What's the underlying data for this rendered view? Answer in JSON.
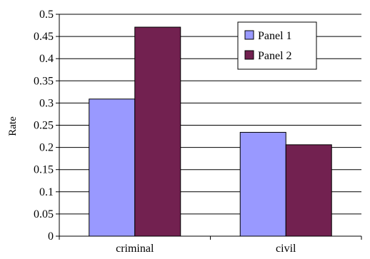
{
  "chart_data": {
    "type": "bar",
    "title": "",
    "xlabel": "",
    "ylabel": "Rate",
    "categories": [
      "criminal",
      "civil"
    ],
    "series": [
      {
        "name": "Panel 1",
        "values": [
          0.309,
          0.234
        ]
      },
      {
        "name": "Panel 2",
        "values": [
          0.471,
          0.206
        ]
      }
    ],
    "ylim": [
      0,
      0.5
    ],
    "yticks": [
      "0",
      "0.05",
      "0.1",
      "0.15",
      "0.2",
      "0.25",
      "0.3",
      "0.35",
      "0.4",
      "0.45",
      "0.5"
    ],
    "grid": true,
    "legend_position": "top-right"
  },
  "colors": {
    "series": [
      "#9999ff",
      "#722150"
    ],
    "grid": "#000000",
    "axis": "#000000",
    "bar_stroke": "#000000"
  }
}
